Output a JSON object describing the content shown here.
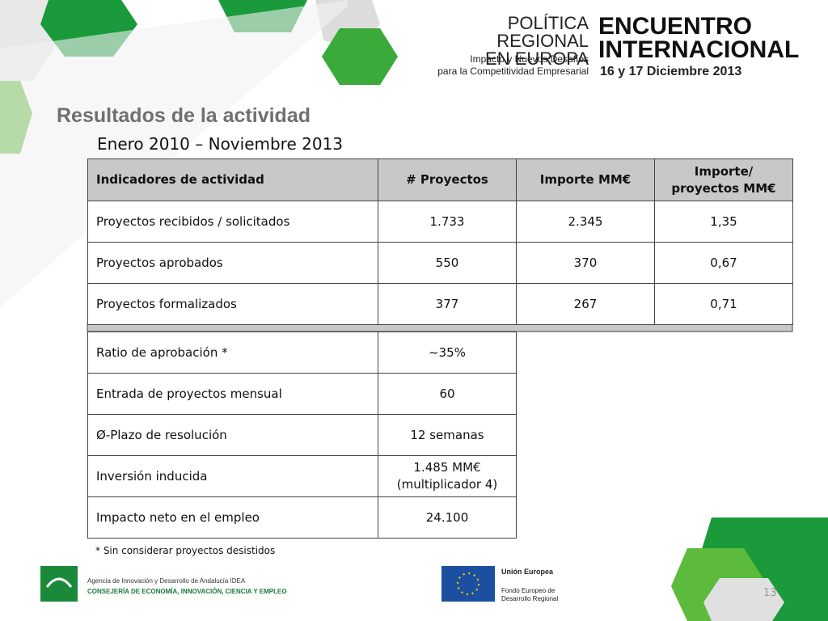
{
  "header": {
    "event_left": [
      "POLÍTICA REGIONAL",
      "EN EUROPA"
    ],
    "event_sub": [
      "Impacto y Nuevos Desafíos",
      "para la Competitividad Empresarial"
    ],
    "event_right": [
      "ENCUENTRO",
      "INTERNACIONAL"
    ],
    "date": "16 y 17 Diciembre 2013"
  },
  "title": "Resultados de la actividad",
  "subtitle": "Enero 2010 – Noviembre 2013",
  "table": {
    "columns": [
      "Indicadores de actividad",
      "# Proyectos",
      "Importe MM€",
      [
        "Importe/",
        "proyectos MM€"
      ]
    ],
    "rows": [
      [
        "Proyectos recibidos / solicitados",
        "1.733",
        "2.345",
        "1,35"
      ],
      [
        "Proyectos aprobados",
        "550",
        "370",
        "0,67"
      ],
      [
        "Proyectos formalizados",
        "377",
        "267",
        "0,71"
      ]
    ]
  },
  "table2": {
    "rows": [
      [
        "Ratio de aprobación *",
        "~35%"
      ],
      [
        "Entrada de proyectos mensual",
        "60"
      ],
      [
        "Ø-Plazo de resolución",
        "12 semanas"
      ],
      [
        "Inversión inducida",
        [
          "1.485 MM€",
          "(multiplicador 4)"
        ]
      ],
      [
        "Impacto neto en el empleo",
        "24.100"
      ]
    ]
  },
  "footnote": "* Sin considerar proyectos desistidos",
  "footer": {
    "agency": "Agencia de Innovación y Desarrollo de Andalucía IDEA",
    "ministry": "CONSEJERÍA DE ECONOMÍA, INNOVACIÓN, CIENCIA Y EMPLEO",
    "eu": "Unión Europea",
    "fund": [
      "Fondo Europeo de",
      "Desarrollo Regional"
    ],
    "page": "13"
  }
}
